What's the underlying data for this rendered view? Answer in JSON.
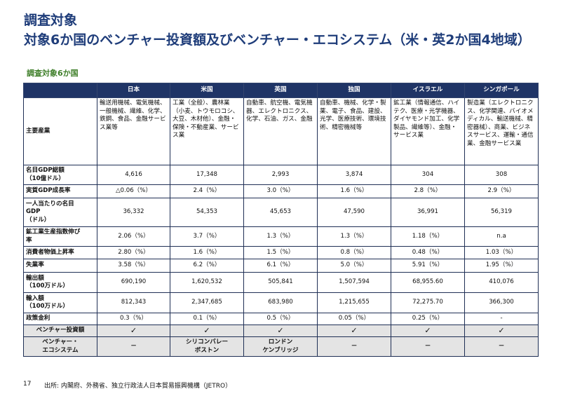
{
  "title": "調査対象",
  "subtitle_main": "対象6か国のベンチャー投資額及びベンチャー・エコシステム（米・英2か国4地域）",
  "section_label": "調査対象6か国",
  "columns": [
    "日本",
    "米国",
    "英国",
    "独国",
    "イスラエル",
    "シンガポール"
  ],
  "rows": {
    "industries": {
      "label": "主要産業",
      "values": [
        "輸送用機械、電気機械、一般機械、繊維、化学、鉄鋼、食品、金融サービス業等",
        "工業（全般）、農林業（小麦、トウモロコシ、大豆、木材他）、金融・保険・不動産業、サービス業",
        "自動車、航空機、電気機器、エレクトロニクス、化学、石油、ガス、金融",
        "自動車、機械、化学・製薬、電子、食品、建設、光学、医療技術、環境技術、精密機械等",
        "鉱工業（情報通信、ハイテク、医療・光学機器、ダイヤモンド加工、化学製品、繊維等）、金融・サービス業",
        "製造業（エレクトロニクス、化学関連、バイオメディカル、輸送機械、精密器械）、商業、ビジネスサービス、運輸・通信業、金融サービス業"
      ]
    },
    "gdp": {
      "label1": "名目GDP総額",
      "label2": "（10億ドル）",
      "values": [
        "4,616",
        "17,348",
        "2,993",
        "3,874",
        "304",
        "308"
      ]
    },
    "growth": {
      "label": "実質GDP成長率",
      "values": [
        "△0.06（%）",
        "2.4（%）",
        "3.0（%）",
        "1.6（%）",
        "2.8（%）",
        "2.9（%）"
      ]
    },
    "per_capita": {
      "label1": "一人当たりの名目",
      "label2": "GDP",
      "label3": "（ドル）",
      "values": [
        "36,332",
        "54,353",
        "45,653",
        "47,590",
        "36,991",
        "56,319"
      ]
    },
    "mining": {
      "label1": "鉱工業生産指数伸び",
      "label2": "率",
      "values": [
        "2.06（%）",
        "3.7（%）",
        "1.3（%）",
        "1.3（%）",
        "1.18（%）",
        "n.a"
      ]
    },
    "cpi": {
      "label": "消費者物価上昇率",
      "values": [
        "2.80（%）",
        "1.6（%）",
        "1.5（%）",
        "0.8（%）",
        "0.48（%）",
        "1.03（%）"
      ]
    },
    "unemployment": {
      "label": "失業率",
      "values": [
        "3.58（%）",
        "6.2（%）",
        "6.1（%）",
        "5.0（%）",
        "5.91（%）",
        "1.95（%）"
      ]
    },
    "exports": {
      "label1": "輸出額",
      "label2": "（100万ドル）",
      "values": [
        "690,190",
        "1,620,532",
        "505,841",
        "1,507,594",
        "68,955.60",
        "410,076"
      ]
    },
    "imports": {
      "label1": "輸入額",
      "label2": "（100万ドル）",
      "values": [
        "812,343",
        "2,347,685",
        "683,980",
        "1,215,655",
        "72,275.70",
        "366,300"
      ]
    },
    "policy_rate": {
      "label": "政策金利",
      "values": [
        "0.3（%）",
        "0.1（%）",
        "0.5（%）",
        "0.05（%）",
        "0.25（%）",
        "-"
      ]
    },
    "vc_investment": {
      "label": "ベンチャー投資額",
      "values": [
        "✓",
        "✓",
        "✓",
        "✓",
        "✓",
        "✓"
      ]
    },
    "ecosystem": {
      "label1": "ベンチャー・",
      "label2": "エコシステム",
      "values": [
        [
          "－"
        ],
        [
          "シリコンバレー",
          "ボストン"
        ],
        [
          "ロンドン",
          "ケンブリッジ"
        ],
        [
          "－"
        ],
        [
          "－"
        ],
        [
          "－"
        ]
      ]
    }
  },
  "footer": {
    "page_number": "17",
    "source": "出所: 内閣府、外務省、独立行政法人日本貿易振興機構（JETRO）"
  }
}
